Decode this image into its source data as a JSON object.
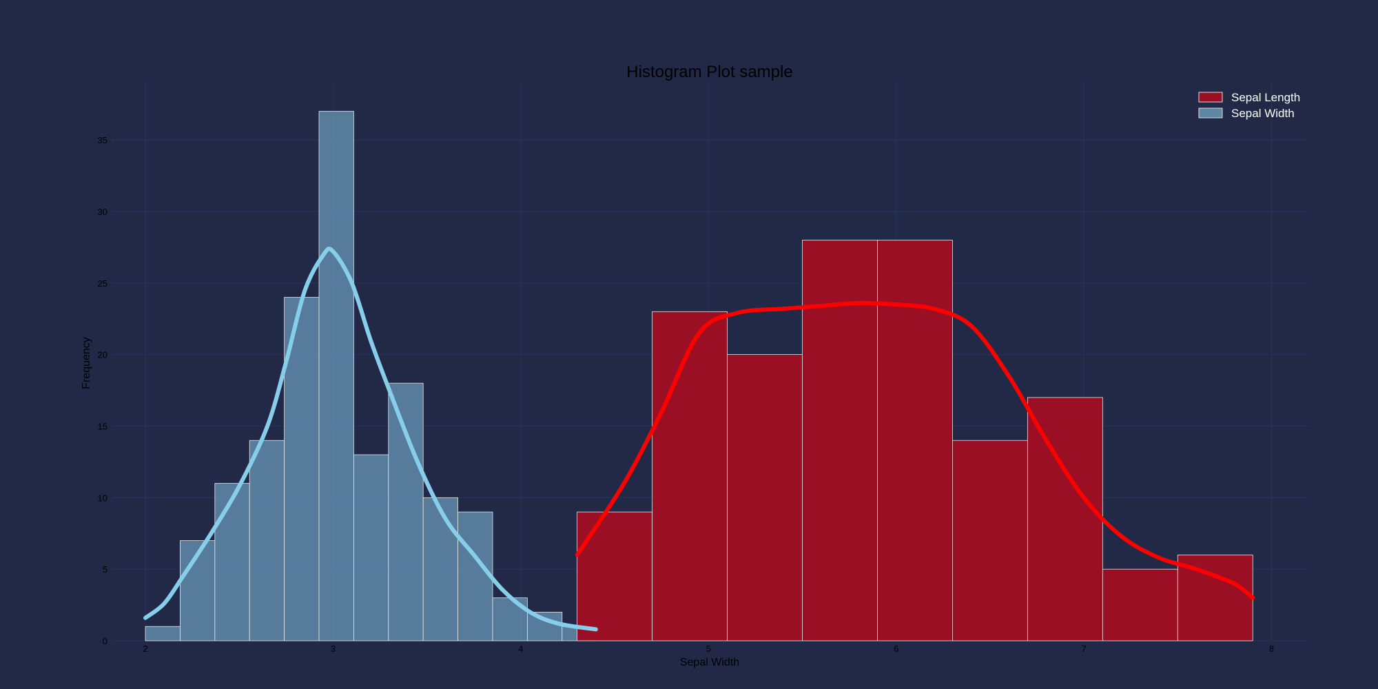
{
  "chart_data": {
    "type": "bar",
    "title": "Histogram Plot sample",
    "xlabel": "Sepal Width",
    "ylabel": "Frequency",
    "xlim": [
      1.82,
      8.2
    ],
    "ylim": [
      0,
      39
    ],
    "xticks": [
      2,
      3,
      4,
      5,
      6,
      7,
      8
    ],
    "yticks": [
      0,
      5,
      10,
      15,
      20,
      25,
      30,
      35
    ],
    "grid": true,
    "legend": "top-right",
    "series": [
      {
        "name": "Sepal Length",
        "bar_color": "#9b0f24",
        "kde_color": "#ff0000",
        "bin_edges": [
          4.3,
          4.7,
          5.1,
          5.5,
          5.9,
          6.3,
          6.7,
          7.1,
          7.5,
          7.9
        ],
        "counts": [
          9,
          23,
          20,
          28,
          28,
          14,
          17,
          5,
          6
        ],
        "kde": [
          [
            4.3,
            6
          ],
          [
            4.55,
            11
          ],
          [
            4.75,
            16
          ],
          [
            4.95,
            21.5
          ],
          [
            5.15,
            22.9
          ],
          [
            5.4,
            23.2
          ],
          [
            5.6,
            23.4
          ],
          [
            5.8,
            23.6
          ],
          [
            6.0,
            23.5
          ],
          [
            6.2,
            23.2
          ],
          [
            6.4,
            22.0
          ],
          [
            6.6,
            18.5
          ],
          [
            6.8,
            14.0
          ],
          [
            7.0,
            10.0
          ],
          [
            7.2,
            7.3
          ],
          [
            7.4,
            5.8
          ],
          [
            7.6,
            5.0
          ],
          [
            7.8,
            4.0
          ],
          [
            7.9,
            3.0
          ]
        ]
      },
      {
        "name": "Sepal Width",
        "bar_color": "#5f88a7",
        "kde_color": "#87ceeb",
        "bin_edges": [
          2.0,
          2.185,
          2.37,
          2.555,
          2.74,
          2.925,
          3.11,
          3.295,
          3.48,
          3.665,
          3.85,
          4.035,
          4.22,
          4.405
        ],
        "counts": [
          1,
          7,
          11,
          14,
          24,
          37,
          13,
          18,
          10,
          9,
          3,
          2,
          1
        ],
        "kde": [
          [
            2.0,
            1.6
          ],
          [
            2.1,
            2.6
          ],
          [
            2.2,
            4.5
          ],
          [
            2.35,
            7.5
          ],
          [
            2.5,
            10.8
          ],
          [
            2.65,
            15.0
          ],
          [
            2.75,
            19.5
          ],
          [
            2.85,
            24.5
          ],
          [
            2.95,
            27.0
          ],
          [
            3.0,
            27.2
          ],
          [
            3.1,
            25.0
          ],
          [
            3.2,
            21.0
          ],
          [
            3.3,
            17.5
          ],
          [
            3.45,
            12.5
          ],
          [
            3.6,
            8.5
          ],
          [
            3.75,
            6.0
          ],
          [
            3.9,
            3.6
          ],
          [
            4.05,
            2.0
          ],
          [
            4.2,
            1.2
          ],
          [
            4.4,
            0.8
          ]
        ]
      }
    ]
  }
}
